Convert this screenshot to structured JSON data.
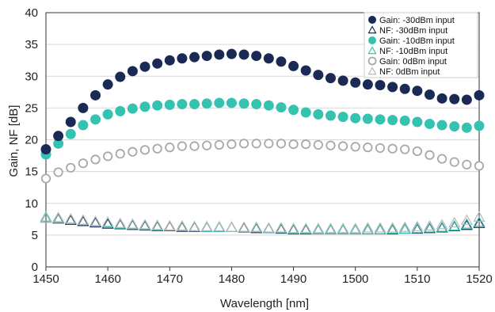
{
  "chart_data": {
    "type": "scatter",
    "xlabel": "Wavelength [nm]",
    "ylabel": "Gain, NF [dB]",
    "xlim": [
      1450,
      1520
    ],
    "ylim": [
      0,
      40
    ],
    "xticks": [
      "1450",
      "1460",
      "1470",
      "1480",
      "1490",
      "1500",
      "1510",
      "1520"
    ],
    "yticks": [
      "0",
      "5",
      "10",
      "15",
      "20",
      "25",
      "30",
      "35",
      "40"
    ],
    "grid": "horizontal",
    "legend_position": "top-right",
    "x": [
      1450,
      1452,
      1454,
      1456,
      1458,
      1460,
      1462,
      1464,
      1466,
      1468,
      1470,
      1472,
      1474,
      1476,
      1478,
      1480,
      1482,
      1484,
      1486,
      1488,
      1490,
      1492,
      1494,
      1496,
      1498,
      1500,
      1502,
      1504,
      1506,
      1508,
      1510,
      1512,
      1514,
      1516,
      1518,
      1520
    ],
    "series": [
      {
        "name": "Gain: -30dBm input",
        "color": "#1b2a55",
        "marker": "filled-circle",
        "values": [
          18.5,
          20.6,
          22.8,
          25.0,
          27.0,
          28.7,
          29.9,
          30.8,
          31.5,
          32.0,
          32.5,
          32.8,
          33.0,
          33.2,
          33.4,
          33.5,
          33.4,
          33.2,
          32.8,
          32.3,
          31.6,
          30.9,
          30.2,
          29.7,
          29.3,
          29.0,
          28.7,
          28.6,
          28.3,
          28.0,
          27.7,
          27.1,
          26.5,
          26.4,
          26.3,
          27.0
        ]
      },
      {
        "name": "NF: -30dBm input",
        "color": "#1b2a55",
        "marker": "open-triangle",
        "values": [
          7.6,
          7.5,
          7.3,
          7.1,
          6.9,
          6.7,
          6.6,
          6.5,
          6.4,
          6.3,
          6.3,
          6.2,
          6.2,
          6.2,
          6.2,
          6.2,
          6.1,
          6.0,
          6.0,
          5.9,
          5.8,
          5.8,
          5.8,
          5.8,
          5.8,
          5.8,
          5.8,
          5.8,
          5.8,
          5.9,
          5.9,
          6.0,
          6.1,
          6.3,
          6.5,
          6.8
        ]
      },
      {
        "name": "Gain: -10dBm input",
        "color": "#36c2b0",
        "marker": "filled-circle",
        "values": [
          17.7,
          19.4,
          20.9,
          22.3,
          23.2,
          24.0,
          24.5,
          24.9,
          25.2,
          25.4,
          25.5,
          25.6,
          25.6,
          25.7,
          25.8,
          25.8,
          25.7,
          25.6,
          25.4,
          25.1,
          24.7,
          24.3,
          24.0,
          23.8,
          23.6,
          23.4,
          23.3,
          23.2,
          23.1,
          23.0,
          22.8,
          22.5,
          22.3,
          22.1,
          21.9,
          22.2
        ]
      },
      {
        "name": "NF: -10dBm input",
        "color": "#36c2b0",
        "marker": "open-triangle",
        "values": [
          7.8,
          7.7,
          7.5,
          7.3,
          7.1,
          6.9,
          6.7,
          6.6,
          6.5,
          6.4,
          6.4,
          6.3,
          6.3,
          6.2,
          6.2,
          6.2,
          6.2,
          6.1,
          6.0,
          6.0,
          5.9,
          5.9,
          5.8,
          5.8,
          5.8,
          5.8,
          5.8,
          5.8,
          5.9,
          5.9,
          6.0,
          6.1,
          6.2,
          6.4,
          6.7,
          7.0
        ]
      },
      {
        "name": "Gain: 0dBm input",
        "color": "#a8a8a8",
        "marker": "open-circle",
        "values": [
          13.9,
          14.9,
          15.6,
          16.3,
          16.9,
          17.4,
          17.8,
          18.1,
          18.4,
          18.6,
          18.8,
          19.0,
          19.0,
          19.1,
          19.2,
          19.3,
          19.4,
          19.4,
          19.4,
          19.4,
          19.3,
          19.3,
          19.2,
          19.1,
          19.0,
          18.9,
          18.8,
          18.7,
          18.6,
          18.5,
          18.2,
          17.6,
          17.0,
          16.5,
          16.1,
          15.9
        ]
      },
      {
        "name": "NF: 0dBm input",
        "color": "#b8b8b8",
        "marker": "open-triangle",
        "values": [
          7.6,
          7.6,
          7.5,
          7.3,
          7.1,
          7.0,
          6.8,
          6.7,
          6.6,
          6.5,
          6.4,
          6.4,
          6.3,
          6.3,
          6.3,
          6.2,
          6.2,
          6.2,
          6.1,
          6.1,
          6.0,
          6.0,
          6.0,
          6.0,
          6.0,
          6.0,
          6.1,
          6.1,
          6.1,
          6.2,
          6.3,
          6.4,
          6.6,
          6.9,
          7.3,
          7.8
        ]
      }
    ]
  }
}
